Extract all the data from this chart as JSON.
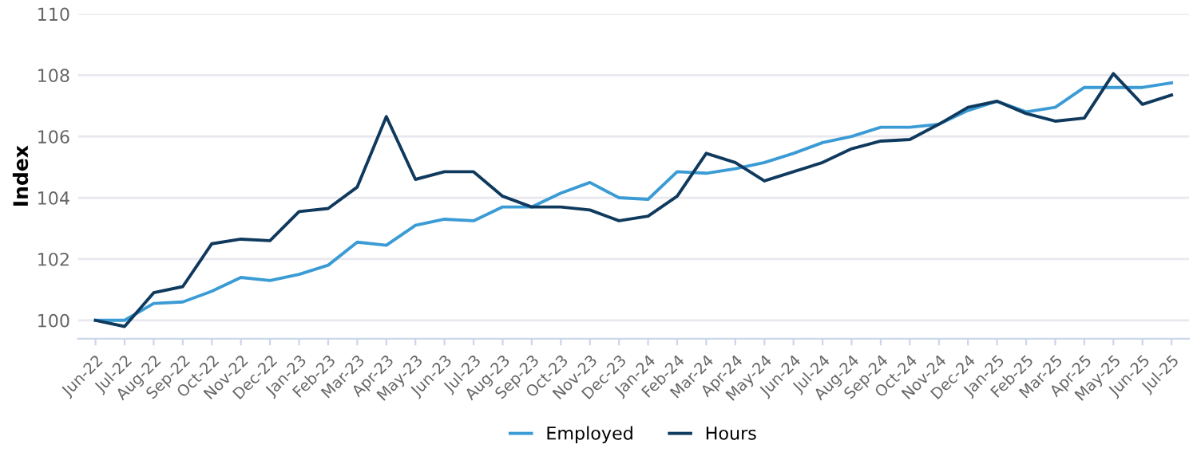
{
  "chart_data": {
    "type": "line",
    "ylabel": "Index",
    "categories": [
      "Jun-22",
      "Jul-22",
      "Aug-22",
      "Sep-22",
      "Oct-22",
      "Nov-22",
      "Dec-22",
      "Jan-23",
      "Feb-23",
      "Mar-23",
      "Apr-23",
      "May-23",
      "Jun-23",
      "Jul-23",
      "Aug-23",
      "Sep-23",
      "Oct-23",
      "Nov-23",
      "Dec-23",
      "Jan-24",
      "Feb-24",
      "Mar-24",
      "Apr-24",
      "May-24",
      "Jun-24",
      "Jul-24",
      "Aug-24",
      "Sep-24",
      "Oct-24",
      "Nov-24",
      "Dec-24",
      "Jan-25",
      "Feb-25",
      "Mar-25",
      "Apr-25",
      "May-25",
      "Jun-25",
      "Jul-25"
    ],
    "series": [
      {
        "name": "Employed",
        "color": "#3a9bd5",
        "values": [
          100,
          100.0,
          100.55,
          100.6,
          100.95,
          101.4,
          101.3,
          101.5,
          101.8,
          102.55,
          102.45,
          103.1,
          103.3,
          103.25,
          103.7,
          103.7,
          104.15,
          104.5,
          104.0,
          103.95,
          104.85,
          104.8,
          104.95,
          105.15,
          105.45,
          105.8,
          106.0,
          106.3,
          106.3,
          106.4,
          106.85,
          107.15,
          106.8,
          106.95,
          107.6,
          107.6,
          107.6,
          107.75
        ]
      },
      {
        "name": "Hours",
        "color": "#0f3a5e",
        "values": [
          100,
          99.8,
          100.9,
          101.1,
          102.5,
          102.65,
          102.6,
          103.55,
          103.65,
          104.35,
          106.65,
          104.6,
          104.85,
          104.85,
          104.05,
          103.7,
          103.7,
          103.6,
          103.25,
          103.4,
          104.05,
          105.45,
          105.15,
          104.55,
          104.85,
          105.15,
          105.6,
          105.85,
          105.9,
          106.4,
          106.95,
          107.15,
          106.75,
          106.5,
          106.6,
          108.05,
          107.05,
          107.35
        ]
      }
    ],
    "ylim": [
      99.4,
      110
    ],
    "yticks": [
      100,
      102,
      104,
      106,
      108,
      110
    ],
    "grid": "y",
    "legend": "bottom",
    "line_style": "solid",
    "marker": "none"
  }
}
